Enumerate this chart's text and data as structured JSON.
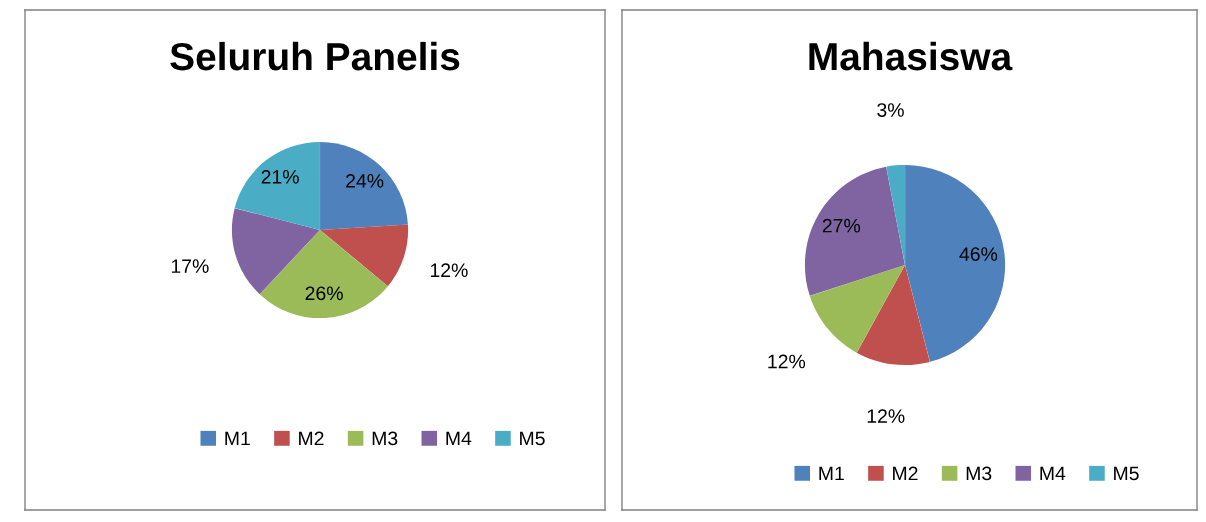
{
  "chart_data": [
    {
      "type": "pie",
      "title": "Seluruh Panelis",
      "categories": [
        "M1",
        "M2",
        "M3",
        "M4",
        "M5"
      ],
      "values": [
        24,
        12,
        26,
        17,
        21
      ],
      "value_labels": [
        "24%",
        "12%",
        "26%",
        "17%",
        "21%"
      ],
      "colors": [
        "#4f81bd",
        "#c0504d",
        "#9bbb59",
        "#8064a2",
        "#4bacc6"
      ],
      "legend": "bottom"
    },
    {
      "type": "pie",
      "title": "Mahasiswa",
      "categories": [
        "M1",
        "M2",
        "M3",
        "M4",
        "M5"
      ],
      "values": [
        46,
        12,
        12,
        27,
        3
      ],
      "value_labels": [
        "46%",
        "12%",
        "12%",
        "27%",
        "3%"
      ],
      "colors": [
        "#4f81bd",
        "#c0504d",
        "#9bbb59",
        "#8064a2",
        "#4bacc6"
      ],
      "legend": "bottom"
    }
  ]
}
